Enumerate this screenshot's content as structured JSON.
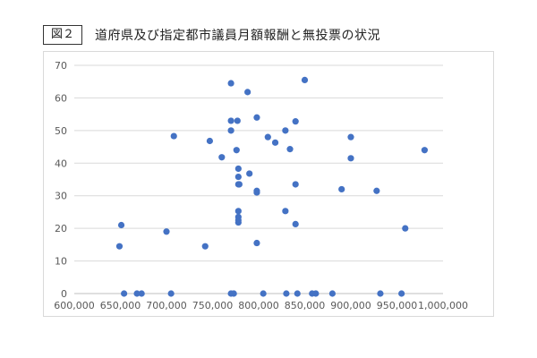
{
  "figure": {
    "label": "図２",
    "title": "道府県及び指定都市議員月額報酬と無投票の状況"
  },
  "colors": {
    "point": "#4472C4",
    "grid": "#d9d9d9",
    "axis_text": "#595959"
  },
  "chart_data": {
    "type": "scatter",
    "title": "道府県及び指定都市議員月額報酬と無投票の状況",
    "xlabel": "",
    "ylabel": "",
    "xlim": [
      600000,
      1000000
    ],
    "ylim": [
      0,
      70
    ],
    "x_ticks": [
      600000,
      650000,
      700000,
      750000,
      800000,
      850000,
      900000,
      950000,
      1000000
    ],
    "x_tick_labels": [
      "600,000",
      "650,000",
      "700,000",
      "750,000",
      "800,000",
      "850,000",
      "900,000",
      "950,000",
      "1,000,000"
    ],
    "y_ticks": [
      0,
      10,
      20,
      30,
      40,
      50,
      60,
      70
    ],
    "y_tick_labels": [
      "0",
      "10",
      "20",
      "30",
      "40",
      "50",
      "60",
      "70"
    ],
    "grid": "horizontal",
    "legend": "none",
    "series": [
      {
        "points": [
          [
            649000,
            14.5
          ],
          [
            651000,
            21.0
          ],
          [
            654000,
            0
          ],
          [
            668000,
            0
          ],
          [
            673000,
            0
          ],
          [
            700000,
            19.0
          ],
          [
            705000,
            0
          ],
          [
            708000,
            48.3
          ],
          [
            742000,
            14.5
          ],
          [
            747000,
            46.8
          ],
          [
            760000,
            41.8
          ],
          [
            770000,
            64.5
          ],
          [
            770000,
            53.0
          ],
          [
            770000,
            50.0
          ],
          [
            770000,
            0
          ],
          [
            773000,
            0
          ],
          [
            776000,
            44.0
          ],
          [
            777000,
            53.0
          ],
          [
            778000,
            38.3
          ],
          [
            778000,
            35.8
          ],
          [
            778000,
            33.5
          ],
          [
            779000,
            33.5
          ],
          [
            778000,
            25.3
          ],
          [
            778000,
            23.5
          ],
          [
            778000,
            22.5
          ],
          [
            778000,
            21.8
          ],
          [
            788000,
            61.8
          ],
          [
            790000,
            36.8
          ],
          [
            798000,
            54.0
          ],
          [
            798000,
            31.5
          ],
          [
            798000,
            31.0
          ],
          [
            798000,
            15.5
          ],
          [
            805000,
            0
          ],
          [
            810000,
            48.0
          ],
          [
            818000,
            46.3
          ],
          [
            829000,
            50.0
          ],
          [
            829000,
            25.3
          ],
          [
            830000,
            0
          ],
          [
            834000,
            44.3
          ],
          [
            840000,
            52.8
          ],
          [
            840000,
            33.5
          ],
          [
            840000,
            21.3
          ],
          [
            842000,
            0
          ],
          [
            850000,
            65.5
          ],
          [
            858000,
            0
          ],
          [
            862000,
            0
          ],
          [
            880000,
            0
          ],
          [
            890000,
            32.0
          ],
          [
            900000,
            48.0
          ],
          [
            900000,
            41.5
          ],
          [
            928000,
            31.5
          ],
          [
            932000,
            0
          ],
          [
            955000,
            0
          ],
          [
            959000,
            20.0
          ],
          [
            980000,
            44.0
          ]
        ]
      }
    ]
  }
}
